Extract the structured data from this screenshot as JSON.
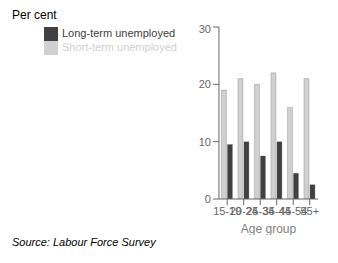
{
  "chart_data": {
    "type": "bar",
    "categories": [
      "15-19",
      "20-24",
      "25-34",
      "35-44",
      "45-54",
      "55+"
    ],
    "series": [
      {
        "name": "Short-term unemployed",
        "color": "#d0d0d0",
        "values": [
          19,
          21,
          20,
          22,
          16,
          21
        ]
      },
      {
        "name": "Long-term unemployed",
        "color": "#404040",
        "values": [
          9.5,
          10,
          7.5,
          10,
          4.5,
          2.5
        ]
      }
    ],
    "ylabel": "Per cent",
    "xlabel": "Age group",
    "ylim": [
      0,
      30
    ],
    "yticks": [
      0,
      10,
      20,
      30
    ],
    "grid": false,
    "legend": "upper left",
    "annotations": [
      "Source: Labour Force Survey"
    ]
  }
}
